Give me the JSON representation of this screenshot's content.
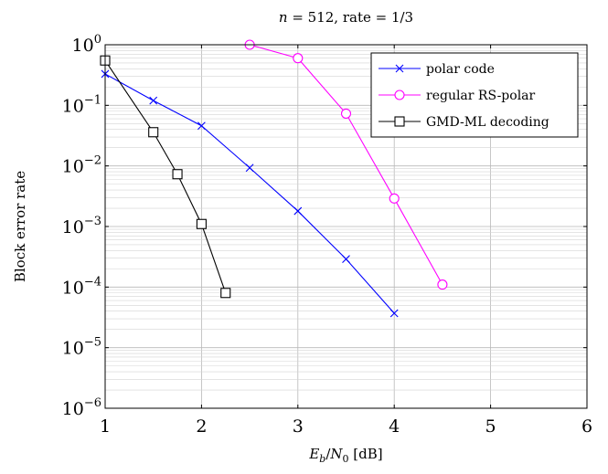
{
  "chart_data": {
    "type": "line",
    "title": "n = 512, rate = 1/3",
    "xlabel": "Eb/N0 [dB]",
    "ylabel": "Block error rate",
    "xlim": [
      1,
      6
    ],
    "ylim": [
      1e-06,
      1
    ],
    "yscale": "log",
    "grid": true,
    "legend_position": "top-right",
    "x_ticks": [
      "1",
      "2",
      "3",
      "4",
      "5",
      "6"
    ],
    "y_ticks": [
      {
        "base": "10",
        "exp": "0"
      },
      {
        "base": "10",
        "exp": "−1"
      },
      {
        "base": "10",
        "exp": "−2"
      },
      {
        "base": "10",
        "exp": "−3"
      },
      {
        "base": "10",
        "exp": "−4"
      },
      {
        "base": "10",
        "exp": "−5"
      },
      {
        "base": "10",
        "exp": "−6"
      }
    ],
    "series": [
      {
        "name": "polar code",
        "color": "#0000ff",
        "marker": "x",
        "points": [
          [
            1.0,
            0.33
          ],
          [
            1.5,
            0.12
          ],
          [
            2.0,
            0.046
          ],
          [
            2.5,
            0.0093
          ],
          [
            3.0,
            0.0018
          ],
          [
            3.5,
            0.00029
          ],
          [
            4.0,
            3.7e-05
          ]
        ]
      },
      {
        "name": "regular RS-polar",
        "color": "#ff00ff",
        "marker": "circle",
        "points": [
          [
            2.5,
            1.0
          ],
          [
            3.0,
            0.6
          ],
          [
            3.5,
            0.073
          ],
          [
            4.0,
            0.0029
          ],
          [
            4.5,
            0.00011
          ]
        ]
      },
      {
        "name": "GMD-ML decoding",
        "color": "#000000",
        "marker": "square",
        "points": [
          [
            1.0,
            0.55
          ],
          [
            1.5,
            0.036
          ],
          [
            1.75,
            0.0073
          ],
          [
            2.0,
            0.0011
          ],
          [
            2.25,
            8e-05
          ]
        ]
      }
    ]
  }
}
